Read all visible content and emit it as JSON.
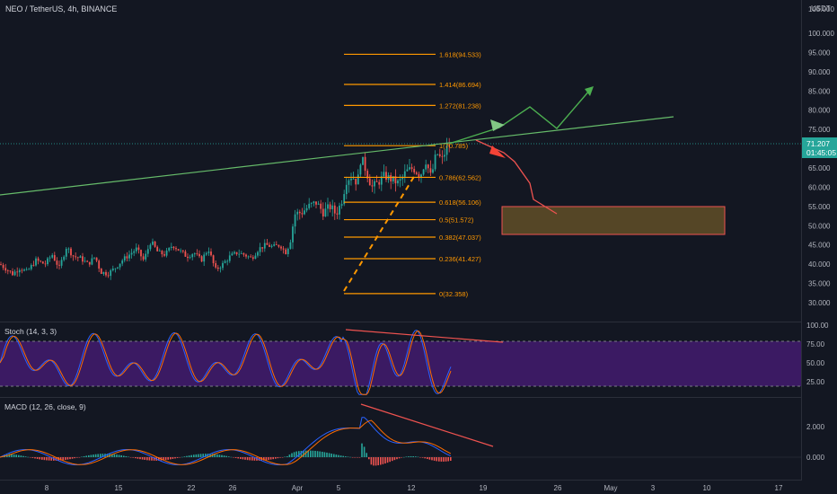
{
  "header": {
    "symbol_title": "NEO / TetherUS, 4h, BINANCE",
    "quote_currency": "USDT"
  },
  "price_axis": {
    "labels": [
      "105.000",
      "100.000",
      "95.000",
      "90.000",
      "85.000",
      "80.000",
      "75.000",
      "65.000",
      "60.000",
      "55.000",
      "50.000",
      "45.000",
      "40.000",
      "35.000",
      "30.000"
    ],
    "current_price": "71.207",
    "countdown": "01:45:05",
    "current_price_color": "#26a69a"
  },
  "time_axis": {
    "labels": [
      "8",
      "15",
      "22",
      "26",
      "Apr",
      "5",
      "12",
      "19",
      "26",
      "May",
      "3",
      "10",
      "17"
    ]
  },
  "fib_levels": [
    {
      "label": "1.618(94.533)",
      "ratio": 1.618,
      "price": 94.533
    },
    {
      "label": "1.414(86.694)",
      "ratio": 1.414,
      "price": 86.694
    },
    {
      "label": "1.272(81.238)",
      "ratio": 1.272,
      "price": 81.238
    },
    {
      "label": "1(70.785)",
      "ratio": 1,
      "price": 70.785
    },
    {
      "label": "0.786(62.562)",
      "ratio": 0.786,
      "price": 62.562
    },
    {
      "label": "0.618(56.106)",
      "ratio": 0.618,
      "price": 56.106
    },
    {
      "label": "0.5(51.572)",
      "ratio": 0.5,
      "price": 51.572
    },
    {
      "label": "0.382(47.037)",
      "ratio": 0.382,
      "price": 47.037
    },
    {
      "label": "0.236(41.427)",
      "ratio": 0.236,
      "price": 41.427
    },
    {
      "label": "0(32.358)",
      "ratio": 0,
      "price": 32.358
    }
  ],
  "stoch": {
    "title": "Stoch (14, 3, 3)",
    "labels": [
      "100.00",
      "75.00",
      "50.00",
      "25.00"
    ],
    "band": [
      20,
      80
    ]
  },
  "macd": {
    "title": "MACD (12, 26, close, 9)",
    "labels": [
      "2.000",
      "0.000"
    ]
  },
  "colors": {
    "background": "#131722",
    "up": "#26a69a",
    "down": "#ef5350",
    "fib": "#ff9800",
    "trendline": "#66bb6a",
    "projection_up": "#4caf50",
    "projection_down": "#f44336",
    "target_zone": "#ff9800",
    "stoch_k": "#2962ff",
    "stoch_d": "#ff6d00",
    "stoch_band": "#7e57c2",
    "macd_line": "#2962ff",
    "signal_line": "#ff6d00"
  },
  "chart_data": {
    "type": "candlestick",
    "symbol": "NEO/USDT",
    "timeframe": "4h",
    "y_range": [
      28,
      107
    ],
    "price_path": [
      [
        0,
        40
      ],
      [
        14,
        37.5
      ],
      [
        22,
        39
      ],
      [
        30,
        38
      ],
      [
        40,
        41
      ],
      [
        50,
        40
      ],
      [
        58,
        42.5
      ],
      [
        66,
        39
      ],
      [
        74,
        44.5
      ],
      [
        82,
        42
      ],
      [
        90,
        41.5
      ],
      [
        98,
        40
      ],
      [
        106,
        42
      ],
      [
        112,
        38
      ],
      [
        120,
        37.5
      ],
      [
        128,
        39
      ],
      [
        136,
        41
      ],
      [
        144,
        42.5
      ],
      [
        152,
        44
      ],
      [
        160,
        41
      ],
      [
        168,
        46
      ],
      [
        176,
        43
      ],
      [
        184,
        42.5
      ],
      [
        192,
        45
      ],
      [
        200,
        43.5
      ],
      [
        208,
        42
      ],
      [
        216,
        43
      ],
      [
        224,
        41
      ],
      [
        232,
        44
      ],
      [
        240,
        38.5
      ],
      [
        248,
        40
      ],
      [
        256,
        42
      ],
      [
        264,
        43
      ],
      [
        272,
        42.5
      ],
      [
        280,
        41.5
      ],
      [
        288,
        44
      ],
      [
        296,
        45
      ],
      [
        304,
        44.5
      ],
      [
        312,
        45
      ],
      [
        318,
        43
      ],
      [
        324,
        47
      ],
      [
        328,
        53
      ],
      [
        336,
        53.5
      ],
      [
        344,
        55
      ],
      [
        352,
        56
      ],
      [
        360,
        53.5
      ],
      [
        368,
        55
      ],
      [
        374,
        53
      ],
      [
        380,
        56
      ],
      [
        386,
        62
      ],
      [
        392,
        63
      ],
      [
        398,
        61
      ],
      [
        402,
        68
      ],
      [
        408,
        64
      ],
      [
        414,
        60
      ],
      [
        420,
        61
      ],
      [
        428,
        63
      ],
      [
        436,
        62
      ],
      [
        444,
        61
      ],
      [
        452,
        64
      ],
      [
        460,
        65
      ],
      [
        468,
        63
      ],
      [
        474,
        67
      ],
      [
        480,
        62.5
      ],
      [
        486,
        69
      ],
      [
        492,
        67
      ],
      [
        498,
        70.5
      ],
      [
        502,
        71.2
      ]
    ],
    "fib_anchor_low": 32.358,
    "fib_anchor_high": 70.785,
    "target_zone": {
      "price_low": 48,
      "price_high": 55.5
    }
  }
}
